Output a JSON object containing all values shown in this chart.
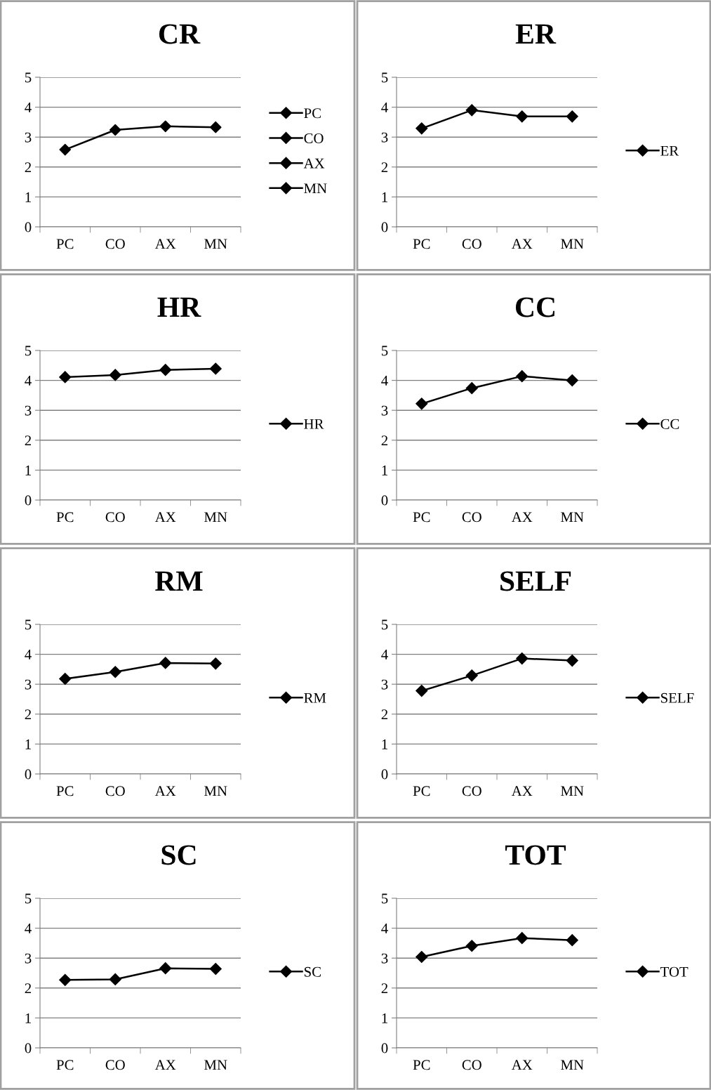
{
  "chart_data": [
    {
      "type": "line",
      "title": "CR",
      "categories": [
        "PC",
        "CO",
        "AX",
        "MN"
      ],
      "ylim": [
        0,
        5
      ],
      "yticks": [
        0,
        1,
        2,
        3,
        4,
        5
      ],
      "grid": "y",
      "legend": "right",
      "marker": "diamond",
      "series": [
        {
          "type": "line",
          "marker": "none",
          "color": "#000000",
          "values": [
            2.58,
            3.24,
            3.36,
            3.33
          ]
        },
        {
          "type": "scatter",
          "name": "PC",
          "color": "#000000",
          "values": [
            2.58,
            null,
            null,
            null
          ]
        },
        {
          "type": "scatter",
          "name": "CO",
          "color": "#000000",
          "values": [
            null,
            3.24,
            null,
            null
          ]
        },
        {
          "type": "scatter",
          "name": "AX",
          "color": "#000000",
          "values": [
            null,
            null,
            3.36,
            null
          ]
        },
        {
          "type": "scatter",
          "name": "MN",
          "color": "#000000",
          "values": [
            null,
            null,
            null,
            3.33
          ]
        }
      ]
    },
    {
      "type": "line",
      "title": "ER",
      "categories": [
        "PC",
        "CO",
        "AX",
        "MN"
      ],
      "ylim": [
        0,
        5
      ],
      "yticks": [
        0,
        1,
        2,
        3,
        4,
        5
      ],
      "grid": "y",
      "legend": "right",
      "marker": "diamond",
      "series": [
        {
          "name": "ER",
          "color": "#000000",
          "values": [
            3.29,
            3.9,
            3.69,
            3.69
          ]
        }
      ]
    },
    {
      "type": "line",
      "title": "HR",
      "categories": [
        "PC",
        "CO",
        "AX",
        "MN"
      ],
      "ylim": [
        0,
        5
      ],
      "yticks": [
        0,
        1,
        2,
        3,
        4,
        5
      ],
      "grid": "y",
      "legend": "right",
      "marker": "diamond",
      "series": [
        {
          "name": "HR",
          "color": "#000000",
          "values": [
            4.11,
            4.18,
            4.35,
            4.39
          ]
        }
      ]
    },
    {
      "type": "line",
      "title": "CC",
      "categories": [
        "PC",
        "CO",
        "AX",
        "MN"
      ],
      "ylim": [
        0,
        5
      ],
      "yticks": [
        0,
        1,
        2,
        3,
        4,
        5
      ],
      "grid": "y",
      "legend": "right",
      "marker": "diamond",
      "series": [
        {
          "name": "CC",
          "color": "#000000",
          "values": [
            3.22,
            3.74,
            4.14,
            4.0
          ]
        }
      ]
    },
    {
      "type": "line",
      "title": "RM",
      "categories": [
        "PC",
        "CO",
        "AX",
        "MN"
      ],
      "ylim": [
        0,
        5
      ],
      "yticks": [
        0,
        1,
        2,
        3,
        4,
        5
      ],
      "grid": "y",
      "legend": "right",
      "marker": "diamond",
      "series": [
        {
          "name": "RM",
          "color": "#000000",
          "values": [
            3.18,
            3.41,
            3.71,
            3.69
          ]
        }
      ]
    },
    {
      "type": "line",
      "title": "SELF",
      "categories": [
        "PC",
        "CO",
        "AX",
        "MN"
      ],
      "ylim": [
        0,
        5
      ],
      "yticks": [
        0,
        1,
        2,
        3,
        4,
        5
      ],
      "grid": "y",
      "legend": "right",
      "marker": "diamond",
      "series": [
        {
          "name": "SELF",
          "color": "#000000",
          "values": [
            2.78,
            3.29,
            3.86,
            3.79
          ]
        }
      ]
    },
    {
      "type": "line",
      "title": "SC",
      "categories": [
        "PC",
        "CO",
        "AX",
        "MN"
      ],
      "ylim": [
        0,
        5
      ],
      "yticks": [
        0,
        1,
        2,
        3,
        4,
        5
      ],
      "grid": "y",
      "legend": "right",
      "marker": "diamond",
      "series": [
        {
          "name": "SC",
          "color": "#000000",
          "values": [
            2.27,
            2.29,
            2.66,
            2.64
          ]
        }
      ]
    },
    {
      "type": "line",
      "title": "TOT",
      "categories": [
        "PC",
        "CO",
        "AX",
        "MN"
      ],
      "ylim": [
        0,
        5
      ],
      "yticks": [
        0,
        1,
        2,
        3,
        4,
        5
      ],
      "grid": "y",
      "legend": "right",
      "marker": "diamond",
      "series": [
        {
          "name": "TOT",
          "color": "#000000",
          "values": [
            3.04,
            3.41,
            3.67,
            3.6
          ]
        }
      ]
    }
  ]
}
